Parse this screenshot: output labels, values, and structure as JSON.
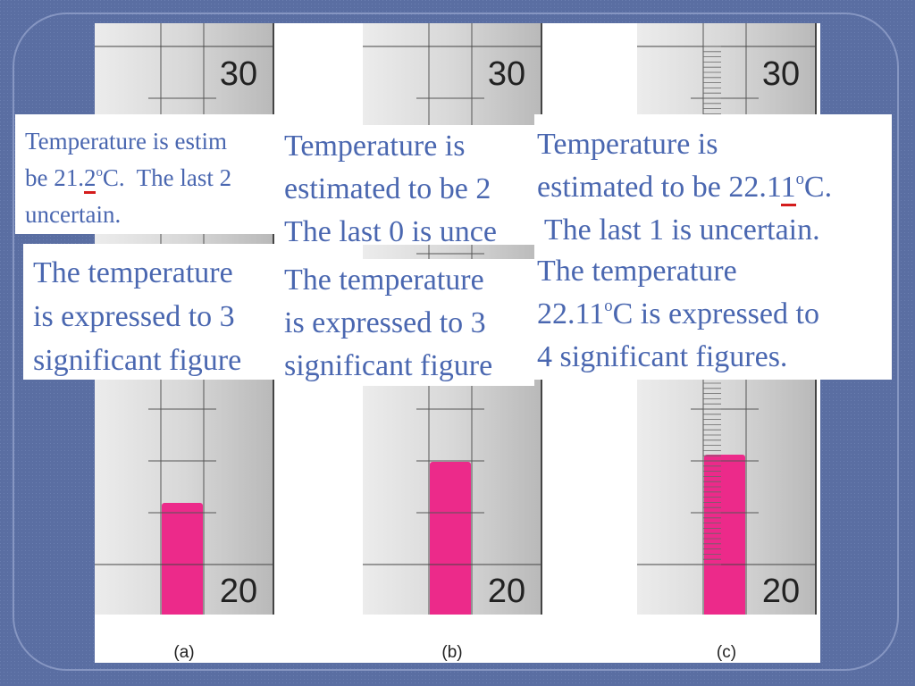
{
  "thermometers": [
    {
      "top_label": 30,
      "bottom_label": 20,
      "caption": "(a)"
    },
    {
      "top_label": 30,
      "bottom_label": 20,
      "caption": "(b)"
    },
    {
      "top_label": 30,
      "bottom_label": 20,
      "caption": "(c)"
    }
  ],
  "boxes": [
    {
      "lines": [
        {
          "pre": "Temperature is estim"
        },
        {
          "pre": "be 21.",
          "u": "2",
          "sup": "o",
          "post": "C.  The last 2"
        },
        {
          "pre": "uncertain."
        }
      ]
    },
    {
      "lines": [
        {
          "pre": "Temperature is"
        },
        {
          "pre": "estimated to be 2"
        },
        {
          "pre": "The last 0 is unce"
        }
      ]
    },
    {
      "lines": [
        {
          "pre": "Temperature is"
        },
        {
          "pre": "estimated to be 22.1",
          "u": "1",
          "sup": "o",
          "post": "C."
        },
        {
          "pre": " The last 1 is uncertain."
        }
      ]
    },
    {
      "lines": [
        {
          "pre": "The temperature"
        },
        {
          "pre": "is expressed to 3"
        },
        {
          "pre": "significant figure"
        }
      ]
    },
    {
      "lines": [
        {
          "pre": "The temperature"
        },
        {
          "pre": "is expressed to 3"
        },
        {
          "pre": "significant figure"
        }
      ]
    },
    {
      "lines": [
        {
          "pre": "The temperature"
        },
        {
          "pre": "22.11",
          "sup": "o",
          "post": "C is expressed to"
        },
        {
          "pre": "4 significant figures."
        }
      ]
    }
  ]
}
